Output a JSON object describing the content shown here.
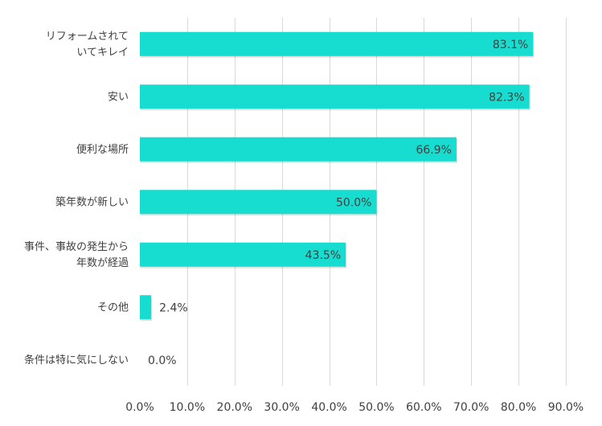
{
  "chart_data": {
    "type": "bar",
    "orientation": "horizontal",
    "categories": [
      [
        "リフォームされて",
        "いてキレイ"
      ],
      [
        "安い"
      ],
      [
        "便利な場所"
      ],
      [
        "築年数が新しい"
      ],
      [
        "事件、事故の発生から",
        "年数が経過"
      ],
      [
        "その他"
      ],
      [
        "条件は特に気にしない"
      ]
    ],
    "values": [
      83.1,
      82.3,
      66.9,
      50.0,
      43.5,
      2.4,
      0.0
    ],
    "value_labels": [
      "83.1%",
      "82.3%",
      "66.9%",
      "50.0%",
      "43.5%",
      "2.4%",
      "0.0%"
    ],
    "xlim": [
      0,
      90
    ],
    "xticks": [
      0,
      10,
      20,
      30,
      40,
      50,
      60,
      70,
      80,
      90
    ],
    "xtick_labels": [
      "0.0%",
      "10.0%",
      "20.0%",
      "30.0%",
      "40.0%",
      "50.0%",
      "60.0%",
      "70.0%",
      "80.0%",
      "90.0%"
    ],
    "grid": true,
    "legend": "none",
    "title": "",
    "xlabel": "",
    "ylabel": "",
    "colors": {
      "bar": "#17ddd0",
      "grid": "#d9d9d9",
      "text": "#404040"
    }
  }
}
